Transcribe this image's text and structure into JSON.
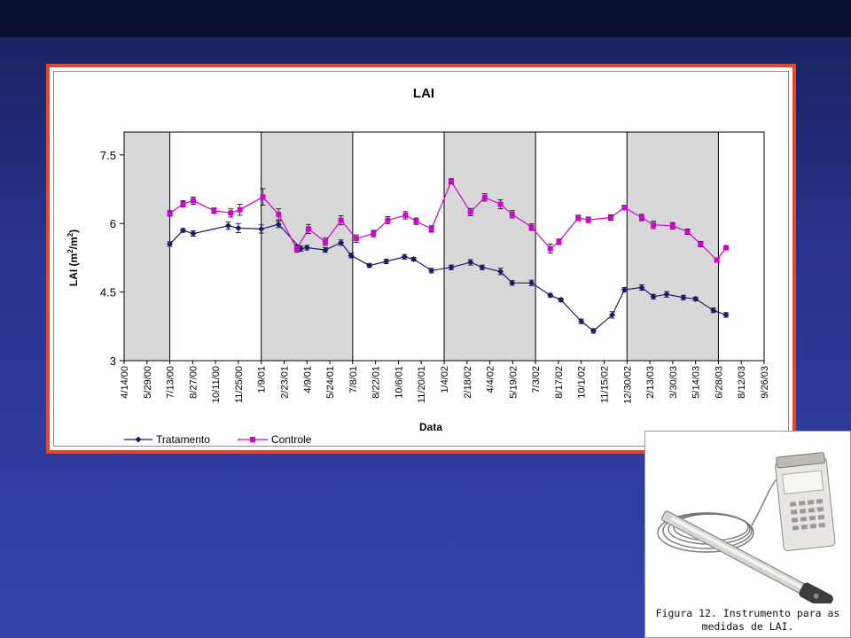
{
  "figure": {
    "caption": "Figura 12. Instrumento para as medidas de LAI."
  },
  "chart_data": {
    "type": "line",
    "title": "LAI",
    "xlabel": "Data",
    "ylabel_main": "LAI (m",
    "ylabel_sup1": "2",
    "ylabel_mid": "/m",
    "ylabel_sup2": "2",
    "ylabel_end": ")",
    "ylim": [
      3,
      8
    ],
    "yticks": [
      "3",
      "4.5",
      "6",
      "7.5"
    ],
    "ytick_values": [
      3,
      4.5,
      6,
      7.5
    ],
    "x_tick_labels": [
      "4/14/00",
      "5/29/00",
      "7/13/00",
      "8/27/00",
      "10/11/00",
      "11/25/00",
      "1/9/01",
      "2/23/01",
      "4/9/01",
      "5/24/01",
      "7/8/01",
      "8/22/01",
      "10/6/01",
      "11/20/01",
      "1/4/02",
      "2/18/02",
      "4/4/02",
      "5/19/02",
      "7/3/02",
      "8/17/02",
      "10/1/02",
      "11/15/02",
      "12/30/02",
      "2/13/03",
      "3/30/03",
      "5/14/03",
      "6/28/03",
      "8/12/03",
      "9/26/03"
    ],
    "x_range": [
      "2000-04-14",
      "2003-09-26"
    ],
    "shaded_periods": [
      [
        "2000-04-14",
        "2000-07-13"
      ],
      [
        "2001-01-09",
        "2001-07-08"
      ],
      [
        "2002-01-04",
        "2002-07-03"
      ],
      [
        "2002-12-30",
        "2003-06-28"
      ]
    ],
    "grid": false,
    "legend_position": "bottom",
    "series": [
      {
        "name": "Tratamento",
        "color": "#1a1a6e",
        "marker": "diamond",
        "points": [
          [
            "2000-07-13",
            5.55,
            0.05
          ],
          [
            "2000-08-08",
            5.85,
            0.04
          ],
          [
            "2000-08-28",
            5.78,
            0.06
          ],
          [
            "2000-11-05",
            5.95,
            0.08
          ],
          [
            "2000-11-25",
            5.9,
            0.1
          ],
          [
            "2001-01-09",
            5.88,
            0.09
          ],
          [
            "2001-02-12",
            5.98,
            0.07
          ],
          [
            "2001-03-28",
            5.45,
            0.06
          ],
          [
            "2001-04-09",
            5.47,
            0.05
          ],
          [
            "2001-05-15",
            5.42,
            0.05
          ],
          [
            "2001-06-15",
            5.58,
            0.06
          ],
          [
            "2001-07-05",
            5.3,
            0.05
          ],
          [
            "2001-08-10",
            5.08,
            0.04
          ],
          [
            "2001-09-12",
            5.17,
            0.05
          ],
          [
            "2001-10-18",
            5.27,
            0.05
          ],
          [
            "2001-11-05",
            5.22,
            0.04
          ],
          [
            "2001-12-10",
            4.97,
            0.05
          ],
          [
            "2002-01-18",
            5.04,
            0.05
          ],
          [
            "2002-02-25",
            5.15,
            0.06
          ],
          [
            "2002-03-20",
            5.04,
            0.05
          ],
          [
            "2002-04-25",
            4.95,
            0.07
          ],
          [
            "2002-05-18",
            4.7,
            0.05
          ],
          [
            "2002-06-25",
            4.7,
            0.06
          ],
          [
            "2002-08-01",
            4.43,
            0.04
          ],
          [
            "2002-08-22",
            4.33,
            0.04
          ],
          [
            "2002-10-01",
            3.86,
            0.05
          ],
          [
            "2002-10-25",
            3.65,
            0.05
          ],
          [
            "2002-12-01",
            4.0,
            0.07
          ],
          [
            "2002-12-25",
            4.55,
            0.05
          ],
          [
            "2003-01-28",
            4.6,
            0.06
          ],
          [
            "2003-02-20",
            4.4,
            0.05
          ],
          [
            "2003-03-18",
            4.45,
            0.06
          ],
          [
            "2003-04-20",
            4.38,
            0.05
          ],
          [
            "2003-05-14",
            4.35,
            0.04
          ],
          [
            "2003-06-18",
            4.1,
            0.05
          ],
          [
            "2003-07-13",
            4.0,
            0.05
          ]
        ]
      },
      {
        "name": "Controle",
        "color": "#d400d4",
        "marker": "square",
        "points": [
          [
            "2000-07-13",
            6.22,
            0.06
          ],
          [
            "2000-08-08",
            6.43,
            0.07
          ],
          [
            "2000-08-28",
            6.5,
            0.08
          ],
          [
            "2000-10-08",
            6.28,
            0.06
          ],
          [
            "2000-11-10",
            6.23,
            0.09
          ],
          [
            "2000-11-28",
            6.3,
            0.12
          ],
          [
            "2001-01-12",
            6.58,
            0.18
          ],
          [
            "2001-02-12",
            6.2,
            0.12
          ],
          [
            "2001-03-20",
            5.45,
            0.08
          ],
          [
            "2001-04-12",
            5.88,
            0.1
          ],
          [
            "2001-05-15",
            5.6,
            0.08
          ],
          [
            "2001-06-15",
            6.07,
            0.1
          ],
          [
            "2001-07-15",
            5.67,
            0.08
          ],
          [
            "2001-08-18",
            5.78,
            0.07
          ],
          [
            "2001-09-15",
            6.07,
            0.08
          ],
          [
            "2001-10-20",
            6.18,
            0.08
          ],
          [
            "2001-11-10",
            6.05,
            0.07
          ],
          [
            "2001-12-10",
            5.88,
            0.07
          ],
          [
            "2002-01-18",
            6.92,
            0.06
          ],
          [
            "2002-02-25",
            6.25,
            0.08
          ],
          [
            "2002-03-25",
            6.57,
            0.08
          ],
          [
            "2002-04-25",
            6.42,
            0.1
          ],
          [
            "2002-05-18",
            6.2,
            0.08
          ],
          [
            "2002-06-25",
            5.92,
            0.07
          ],
          [
            "2002-08-01",
            5.45,
            0.1
          ],
          [
            "2002-08-18",
            5.6,
            0.06
          ],
          [
            "2002-09-25",
            6.12,
            0.06
          ],
          [
            "2002-10-15",
            6.08,
            0.06
          ],
          [
            "2002-11-28",
            6.13,
            0.06
          ],
          [
            "2002-12-25",
            6.35,
            0.05
          ],
          [
            "2003-01-28",
            6.13,
            0.07
          ],
          [
            "2003-02-20",
            5.97,
            0.08
          ],
          [
            "2003-03-30",
            5.95,
            0.07
          ],
          [
            "2003-04-28",
            5.82,
            0.06
          ],
          [
            "2003-05-24",
            5.55,
            0.06
          ],
          [
            "2003-06-25",
            5.2,
            0.05
          ],
          [
            "2003-07-13",
            5.47,
            0.05
          ]
        ]
      }
    ]
  }
}
